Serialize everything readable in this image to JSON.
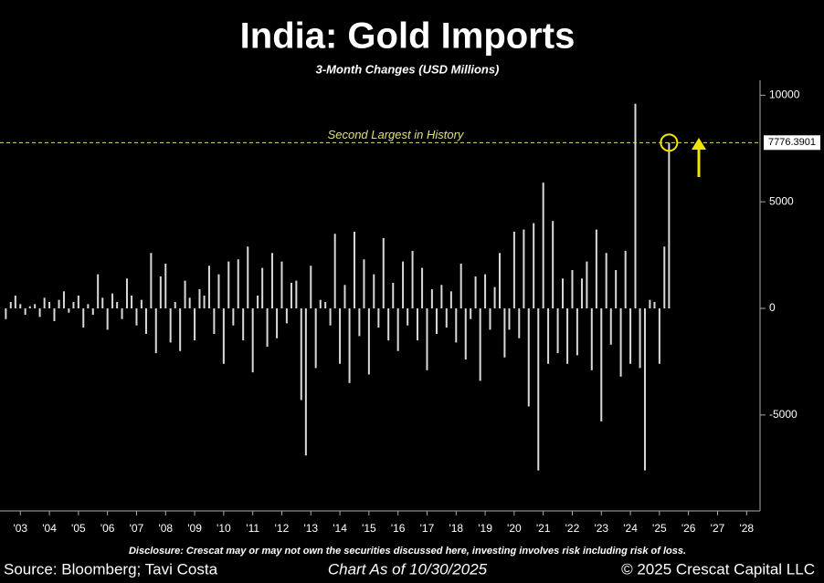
{
  "chart_data": {
    "type": "bar",
    "title": "India: Gold Imports",
    "subtitle": "3-Month Changes (USD Millions)",
    "color": "#d9d9d9",
    "x": [
      2003,
      2003.17,
      2003.33,
      2003.5,
      2003.67,
      2003.83,
      2004,
      2004.17,
      2004.33,
      2004.5,
      2004.67,
      2004.83,
      2005,
      2005.17,
      2005.33,
      2005.5,
      2005.67,
      2005.83,
      2006,
      2006.17,
      2006.33,
      2006.5,
      2006.67,
      2006.83,
      2007,
      2007.17,
      2007.33,
      2007.5,
      2007.67,
      2007.83,
      2008,
      2008.17,
      2008.33,
      2008.5,
      2008.67,
      2008.83,
      2009,
      2009.17,
      2009.33,
      2009.5,
      2009.67,
      2009.83,
      2010,
      2010.17,
      2010.33,
      2010.5,
      2010.67,
      2010.83,
      2011,
      2011.17,
      2011.33,
      2011.5,
      2011.67,
      2011.83,
      2012,
      2012.17,
      2012.33,
      2012.5,
      2012.67,
      2012.83,
      2013,
      2013.17,
      2013.33,
      2013.5,
      2013.67,
      2013.83,
      2014,
      2014.17,
      2014.33,
      2014.5,
      2014.67,
      2014.83,
      2015,
      2015.17,
      2015.33,
      2015.5,
      2015.67,
      2015.83,
      2016,
      2016.17,
      2016.33,
      2016.5,
      2016.67,
      2016.83,
      2017,
      2017.17,
      2017.33,
      2017.5,
      2017.67,
      2017.83,
      2018,
      2018.17,
      2018.33,
      2018.5,
      2018.67,
      2018.83,
      2019,
      2019.17,
      2019.33,
      2019.5,
      2019.67,
      2019.83,
      2020,
      2020.17,
      2020.33,
      2020.5,
      2020.67,
      2020.83,
      2021,
      2021.17,
      2021.33,
      2021.5,
      2021.67,
      2021.83,
      2022,
      2022.17,
      2022.33,
      2022.5,
      2022.67,
      2022.83,
      2023,
      2023.17,
      2023.33,
      2023.5,
      2023.67,
      2023.83,
      2024,
      2024.17,
      2024.33,
      2024.5,
      2024.67,
      2024.83,
      2025,
      2025.17,
      2025.33,
      2025.5,
      2025.67,
      2025.83
    ],
    "values": [
      -500,
      300,
      600,
      200,
      -300,
      100,
      200,
      -400,
      500,
      300,
      -600,
      400,
      800,
      -200,
      300,
      600,
      -900,
      200,
      -300,
      1600,
      500,
      -1000,
      700,
      300,
      -500,
      1400,
      600,
      -800,
      400,
      -1200,
      2600,
      -2100,
      1500,
      2100,
      -1600,
      300,
      -2000,
      1300,
      500,
      -1500,
      900,
      600,
      2000,
      -1200,
      1600,
      -2600,
      2200,
      -800,
      2300,
      -1500,
      2900,
      -3000,
      600,
      1900,
      -1800,
      2600,
      -1400,
      2200,
      -700,
      1200,
      1300,
      -4300,
      -6900,
      2000,
      -2800,
      400,
      300,
      -800,
      3500,
      -2600,
      1100,
      -3500,
      3600,
      -1300,
      2300,
      -3100,
      1600,
      -900,
      3300,
      -1500,
      1200,
      -2000,
      2200,
      -800,
      2700,
      -1500,
      1900,
      -2900,
      900,
      -1200,
      1100,
      -900,
      800,
      -1600,
      2100,
      -2400,
      -500,
      1500,
      -3400,
      1600,
      -1000,
      1000,
      2600,
      -2300,
      -1000,
      3600,
      -1400,
      3700,
      -4600,
      4000,
      -7600,
      5900,
      -2600,
      4100,
      -2100,
      1400,
      -2600,
      1800,
      -2200,
      1400,
      2200,
      -2900,
      3700,
      -5300,
      2600,
      -1700,
      1800,
      -3200,
      2700,
      -2600,
      9600,
      -2800,
      -7600,
      400,
      300,
      -2600,
      2900,
      7776.3901
    ],
    "xlim": [
      2002.8,
      2028.9
    ],
    "ylim": [
      -9500,
      10700
    ],
    "yticks": [
      -5000,
      0,
      5000,
      10000
    ],
    "xticks": [
      {
        "value": 2003.5,
        "label": "'03"
      },
      {
        "value": 2004.5,
        "label": "'04"
      },
      {
        "value": 2005.5,
        "label": "'05"
      },
      {
        "value": 2006.5,
        "label": "'06"
      },
      {
        "value": 2007.5,
        "label": "'07"
      },
      {
        "value": 2008.5,
        "label": "'08"
      },
      {
        "value": 2009.5,
        "label": "'09"
      },
      {
        "value": 2010.5,
        "label": "'10"
      },
      {
        "value": 2011.5,
        "label": "'11"
      },
      {
        "value": 2012.5,
        "label": "'12"
      },
      {
        "value": 2013.5,
        "label": "'13"
      },
      {
        "value": 2014.5,
        "label": "'14"
      },
      {
        "value": 2015.5,
        "label": "'15"
      },
      {
        "value": 2016.5,
        "label": "'16"
      },
      {
        "value": 2017.5,
        "label": "'17"
      },
      {
        "value": 2018.5,
        "label": "'18"
      },
      {
        "value": 2019.5,
        "label": "'19"
      },
      {
        "value": 2020.5,
        "label": "'20"
      },
      {
        "value": 2021.5,
        "label": "'21"
      },
      {
        "value": 2022.5,
        "label": "'22"
      },
      {
        "value": 2023.5,
        "label": "'23"
      },
      {
        "value": 2024.5,
        "label": "'24"
      },
      {
        "value": 2025.5,
        "label": "'25"
      },
      {
        "value": 2026.5,
        "label": "'26"
      },
      {
        "value": 2027.5,
        "label": "'27"
      },
      {
        "value": 2028.5,
        "label": "'28"
      }
    ],
    "reference_line": 7776.3901,
    "annotation": "Second Largest in History",
    "disclosure": "Disclosure: Crescat may or may not own the securities discussed here, investing involves risk including risk of loss.",
    "source": "Source: Bloomberg; Tavi Costa",
    "date_note": "Chart As of 10/30/2025",
    "copyright": "© 2025 Crescat Capital LLC"
  }
}
